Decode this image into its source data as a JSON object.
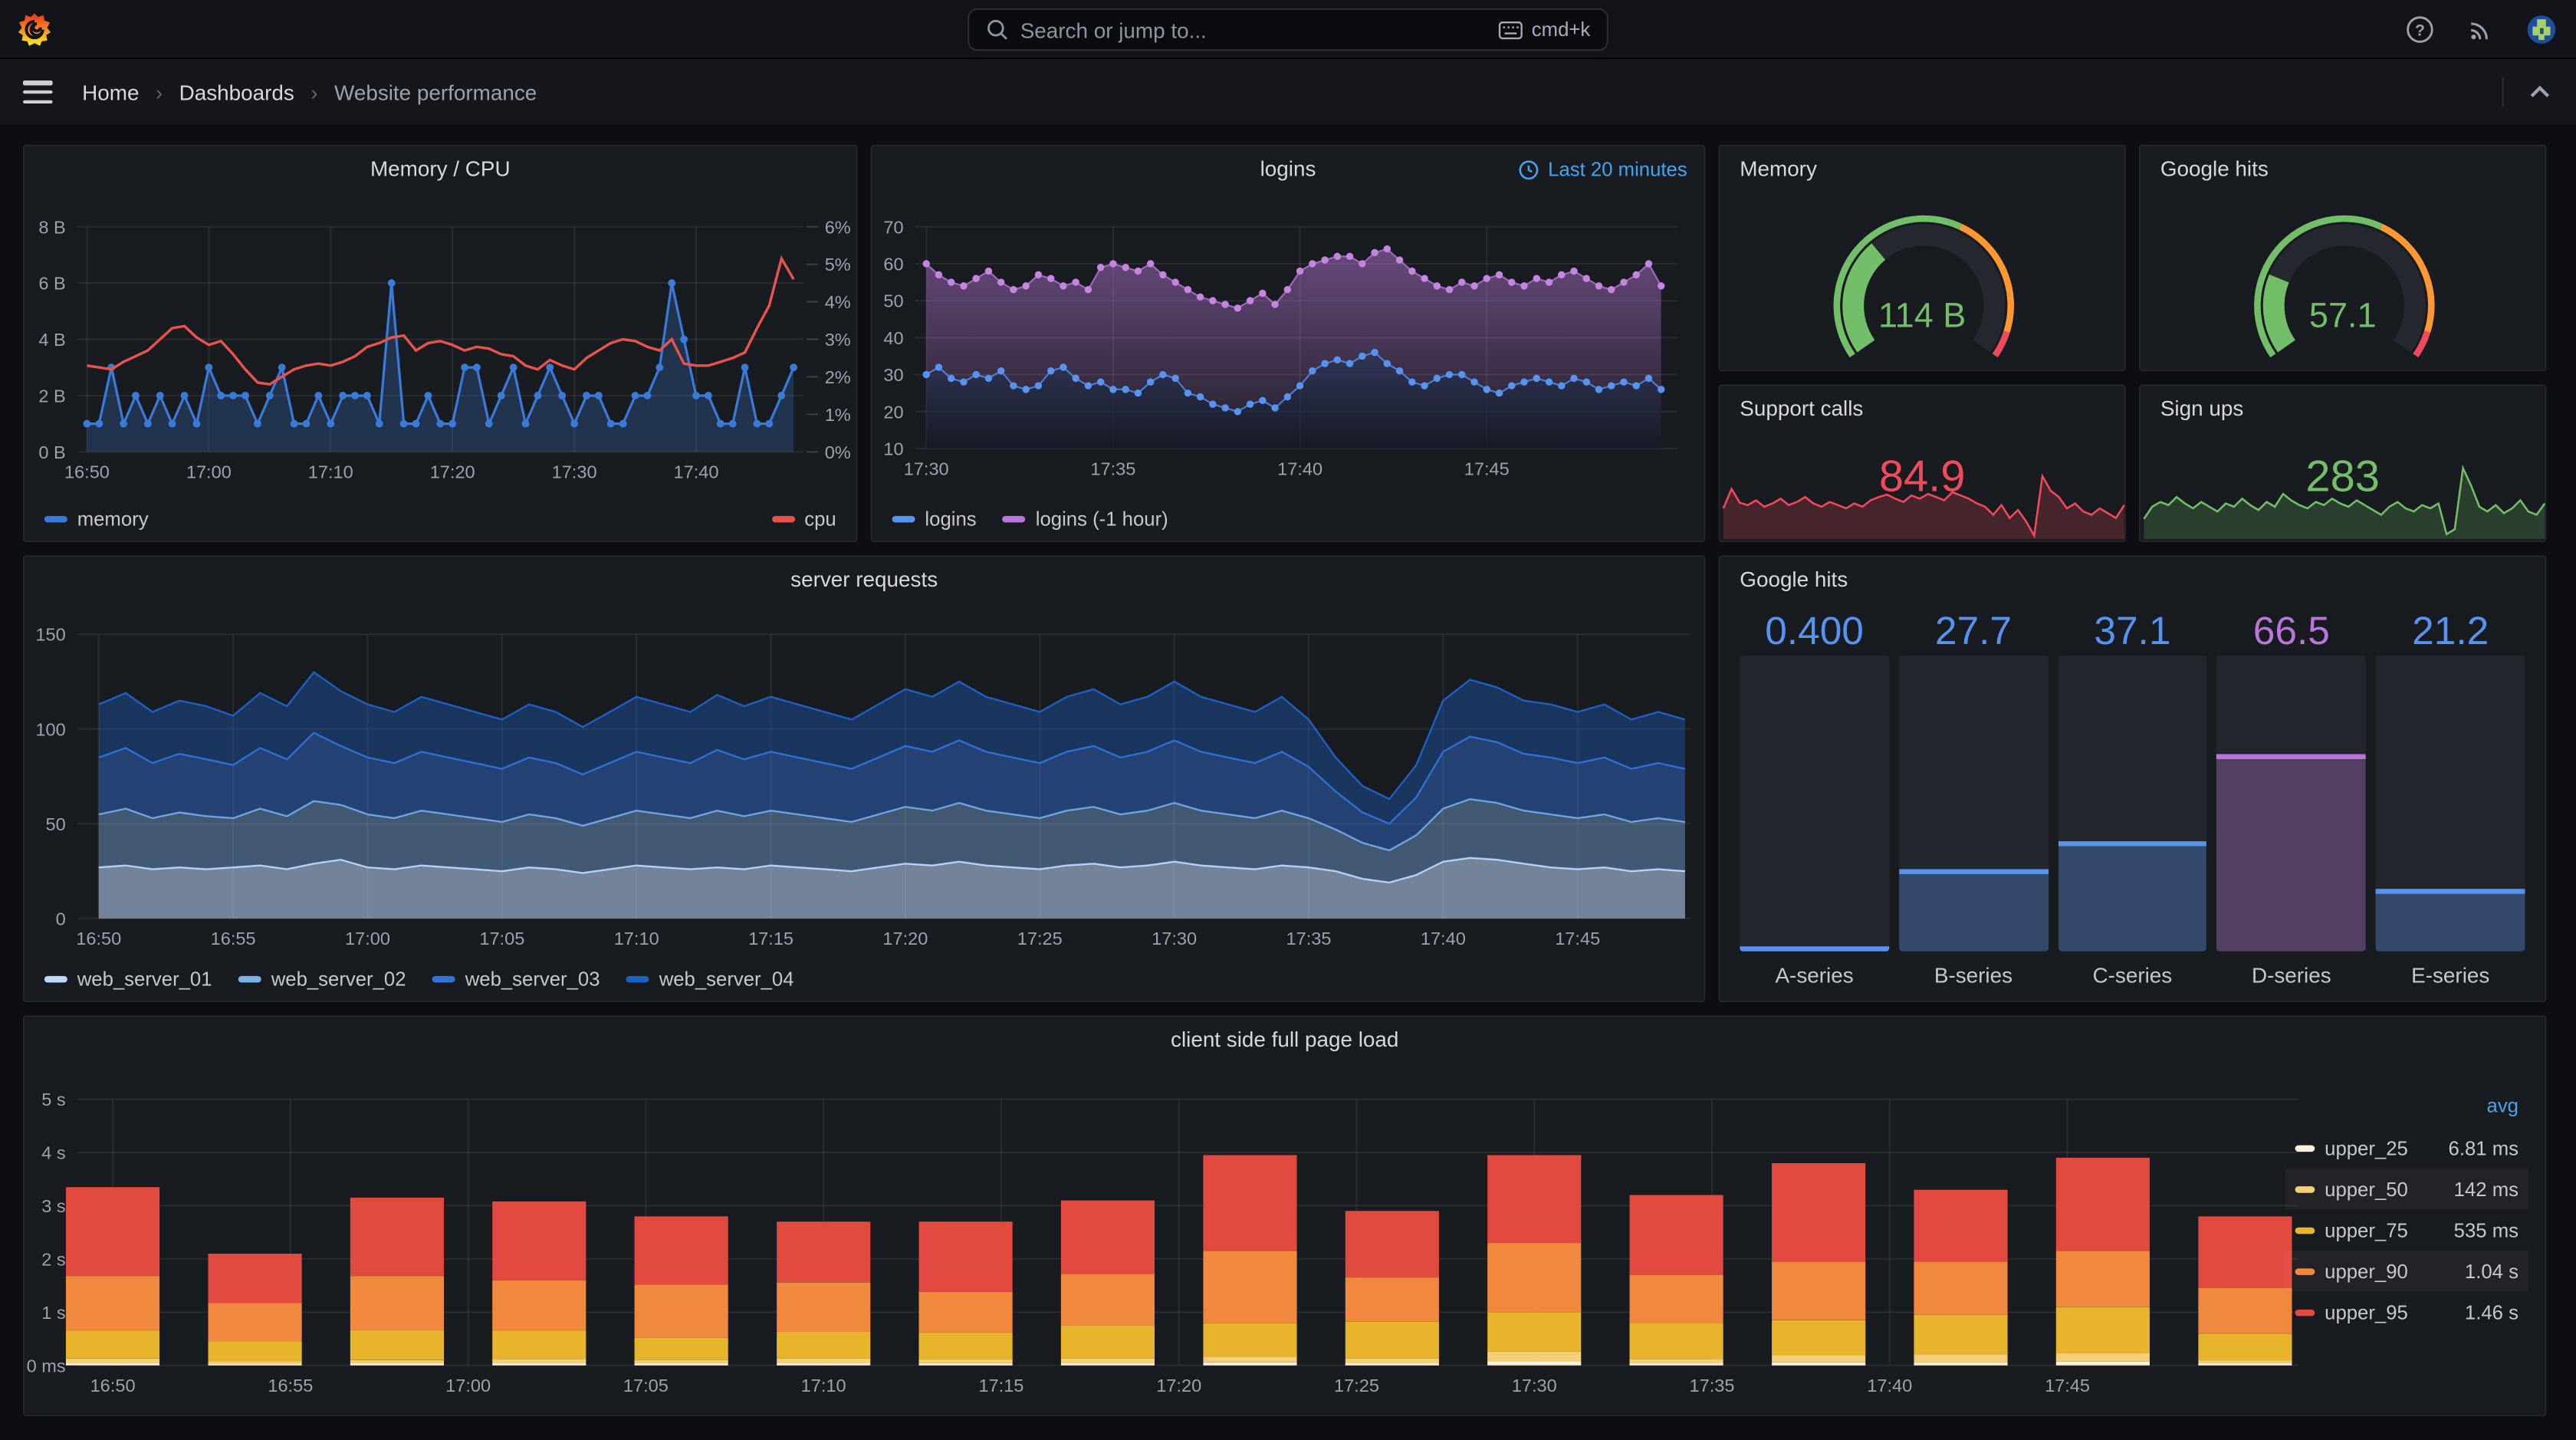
{
  "topnav": {
    "search_placeholder": "Search or jump to...",
    "search_shortcut": "cmd+k"
  },
  "breadcrumb": {
    "items": [
      "Home",
      "Dashboards",
      "Website performance"
    ]
  },
  "colors": {
    "link_blue": "#47A3EC",
    "panel_bg": "#181B1F",
    "page_bg": "#0D0E12",
    "green": "#73BF69",
    "red": "#F2495C",
    "orange": "#FF9830",
    "blue": "#5794F2",
    "purple": "#B877D9"
  },
  "chart_data": [
    {
      "id": "memory_cpu",
      "type": "line",
      "title": "Memory / CPU",
      "x_start": "16:50",
      "x_step_minutes": 1,
      "x_ticks": [
        "16:50",
        "17:00",
        "17:10",
        "17:20",
        "17:30",
        "17:40"
      ],
      "x_tick_minutes": [
        0,
        10,
        20,
        30,
        40,
        50
      ],
      "left_axis": {
        "ticks": [
          "0 B",
          "2 B",
          "4 B",
          "6 B",
          "8 B"
        ],
        "min": 0,
        "max": 8
      },
      "right_axis": {
        "ticks": [
          "0%",
          "1%",
          "2%",
          "3%",
          "4%",
          "5%",
          "6%"
        ],
        "min": 0,
        "max": 6
      },
      "legend": [
        "memory",
        "cpu"
      ],
      "series": [
        {
          "name": "memory",
          "axis": "left",
          "color": "#3A7AD9",
          "values": [
            1,
            1,
            3,
            1,
            2,
            1,
            2,
            1,
            2,
            1,
            3,
            2,
            2,
            2,
            1,
            2,
            3,
            1,
            1,
            2,
            1,
            2,
            2,
            2,
            1,
            6,
            1,
            1,
            2,
            1,
            1,
            3,
            3,
            1,
            2,
            3,
            1,
            2,
            3,
            2,
            1,
            2,
            2,
            1,
            1,
            2,
            2,
            3,
            6,
            4,
            2,
            2,
            1,
            1,
            3,
            1,
            1,
            2,
            3
          ]
        },
        {
          "name": "cpu",
          "axis": "right",
          "color": "#E8534E",
          "values": [
            2.3,
            2.25,
            2.2,
            2.4,
            2.55,
            2.7,
            3.0,
            3.3,
            3.35,
            3.05,
            2.85,
            2.95,
            2.6,
            2.2,
            1.85,
            1.8,
            2.0,
            2.2,
            2.3,
            2.35,
            2.3,
            2.4,
            2.55,
            2.8,
            2.9,
            3.05,
            3.1,
            2.7,
            2.9,
            2.95,
            2.85,
            2.7,
            2.8,
            2.75,
            2.6,
            2.55,
            2.3,
            2.2,
            2.45,
            2.3,
            2.2,
            2.5,
            2.7,
            2.9,
            3.0,
            2.95,
            2.8,
            2.7,
            3.0,
            2.35,
            2.3,
            2.3,
            2.4,
            2.5,
            2.65,
            3.3,
            3.9,
            5.15,
            4.6
          ]
        }
      ]
    },
    {
      "id": "logins",
      "type": "scatter-area",
      "title": "logins",
      "time_range_label": "Last 20 minutes",
      "x_start": "17:30",
      "x_step_seconds": 20,
      "x_ticks": [
        "17:30",
        "17:35",
        "17:40",
        "17:45"
      ],
      "x_tick_minutes": [
        0,
        5,
        10,
        15
      ],
      "ylim": [
        10,
        70
      ],
      "y_ticks": [
        10,
        20,
        30,
        40,
        50,
        60,
        70
      ],
      "series": [
        {
          "name": "logins",
          "color": "#5794F2",
          "values": [
            30,
            32,
            29,
            28,
            30,
            29,
            31,
            27,
            26,
            27,
            31,
            32,
            29,
            27,
            28,
            26,
            26,
            25,
            28,
            30,
            29,
            25,
            24,
            22,
            21,
            20,
            22,
            23,
            21,
            24,
            27,
            31,
            33,
            34,
            33,
            35,
            36,
            33,
            31,
            28,
            27,
            29,
            30,
            30,
            28,
            26,
            25,
            27,
            28,
            29,
            28,
            27,
            29,
            28,
            26,
            27,
            28,
            27,
            29,
            26
          ]
        },
        {
          "name": "logins (-1 hour)",
          "color": "#B877D9",
          "values": [
            60,
            57,
            55,
            54,
            56,
            58,
            55,
            53,
            54,
            57,
            56,
            54,
            55,
            53,
            59,
            60,
            59,
            58,
            60,
            57,
            55,
            53,
            51,
            50,
            49,
            48,
            50,
            52,
            49,
            53,
            58,
            60,
            61,
            62,
            62,
            60,
            63,
            64,
            61,
            58,
            56,
            54,
            53,
            55,
            54,
            56,
            57,
            55,
            54,
            56,
            55,
            57,
            58,
            56,
            54,
            53,
            55,
            57,
            60,
            54
          ]
        }
      ]
    },
    {
      "id": "server_requests",
      "type": "area-stacked",
      "title": "server requests",
      "x_start": "16:50",
      "x_step_minutes": 1,
      "x_ticks": [
        "16:50",
        "16:55",
        "17:00",
        "17:05",
        "17:10",
        "17:15",
        "17:20",
        "17:25",
        "17:30",
        "17:35",
        "17:40",
        "17:45"
      ],
      "x_tick_minutes": [
        0,
        5,
        10,
        15,
        20,
        25,
        30,
        35,
        40,
        45,
        50,
        55
      ],
      "ylim": [
        0,
        150
      ],
      "y_ticks": [
        0,
        50,
        100,
        150
      ],
      "series": [
        {
          "name": "web_server_01",
          "color": "#C0D8FF",
          "values": [
            27,
            28,
            26,
            27,
            26,
            27,
            28,
            26,
            29,
            31,
            27,
            26,
            28,
            27,
            26,
            25,
            27,
            26,
            24,
            26,
            28,
            27,
            26,
            27,
            26,
            28,
            27,
            26,
            25,
            27,
            29,
            28,
            30,
            28,
            27,
            26,
            28,
            29,
            27,
            28,
            30,
            28,
            27,
            26,
            28,
            27,
            25,
            21,
            19,
            23,
            30,
            32,
            31,
            29,
            27,
            26,
            27,
            25,
            26,
            25
          ]
        },
        {
          "name": "web_server_02",
          "color": "#7EB0E8",
          "values": [
            28,
            30,
            27,
            29,
            28,
            26,
            30,
            28,
            33,
            29,
            28,
            27,
            29,
            28,
            27,
            26,
            28,
            27,
            25,
            27,
            29,
            28,
            27,
            30,
            28,
            29,
            28,
            27,
            26,
            28,
            30,
            29,
            31,
            29,
            28,
            27,
            29,
            30,
            28,
            29,
            31,
            29,
            28,
            27,
            29,
            26,
            22,
            19,
            17,
            21,
            28,
            31,
            30,
            28,
            28,
            27,
            28,
            26,
            27,
            26
          ]
        },
        {
          "name": "web_server_03",
          "color": "#3274D9",
          "values": [
            30,
            32,
            29,
            31,
            30,
            28,
            32,
            30,
            36,
            31,
            30,
            29,
            31,
            30,
            29,
            28,
            30,
            29,
            27,
            29,
            31,
            30,
            29,
            32,
            30,
            31,
            30,
            29,
            28,
            30,
            32,
            31,
            33,
            31,
            30,
            29,
            31,
            32,
            30,
            31,
            33,
            31,
            30,
            29,
            31,
            27,
            20,
            16,
            14,
            20,
            30,
            33,
            32,
            30,
            30,
            29,
            30,
            28,
            29,
            28
          ]
        },
        {
          "name": "web_server_04",
          "color": "#1F60C4",
          "values": [
            28,
            29,
            27,
            28,
            28,
            26,
            29,
            28,
            32,
            29,
            28,
            27,
            29,
            28,
            27,
            26,
            28,
            27,
            25,
            27,
            29,
            28,
            27,
            29,
            28,
            29,
            28,
            27,
            26,
            28,
            30,
            29,
            31,
            29,
            28,
            27,
            29,
            30,
            28,
            29,
            31,
            29,
            28,
            27,
            29,
            25,
            18,
            14,
            13,
            17,
            27,
            30,
            29,
            28,
            28,
            27,
            28,
            26,
            27,
            26
          ]
        }
      ]
    },
    {
      "id": "gauge_memory",
      "type": "gauge",
      "title": "Memory",
      "value": "114 B",
      "fraction": 0.34,
      "thresholds": [
        {
          "color": "#73BF69",
          "upto": 0.6
        },
        {
          "color": "#FF9830",
          "upto": 0.93
        },
        {
          "color": "#F2495C",
          "upto": 1.0
        }
      ]
    },
    {
      "id": "gauge_google",
      "type": "gauge",
      "title": "Google hits",
      "value": "57.1",
      "fraction": 0.23,
      "thresholds": [
        {
          "color": "#73BF69",
          "upto": 0.6
        },
        {
          "color": "#FF9830",
          "upto": 0.93
        },
        {
          "color": "#F2495C",
          "upto": 1.0
        }
      ]
    },
    {
      "id": "support_calls",
      "type": "stat-sparkline",
      "title": "Support calls",
      "value": "84.9",
      "color": "#F2495C",
      "spark": [
        0.38,
        0.62,
        0.45,
        0.42,
        0.48,
        0.4,
        0.44,
        0.5,
        0.42,
        0.46,
        0.52,
        0.44,
        0.4,
        0.46,
        0.42,
        0.38,
        0.44,
        0.4,
        0.48,
        0.52,
        0.55,
        0.5,
        0.46,
        0.54,
        0.5,
        0.56,
        0.52,
        0.48,
        0.58,
        0.54,
        0.5,
        0.44,
        0.4,
        0.3,
        0.42,
        0.26,
        0.36,
        0.22,
        0.04,
        0.78,
        0.6,
        0.52,
        0.38,
        0.44,
        0.34,
        0.3,
        0.38,
        0.32,
        0.26,
        0.42
      ]
    },
    {
      "id": "sign_ups",
      "type": "stat-sparkline",
      "title": "Sign ups",
      "value": "283",
      "color": "#73BF69",
      "spark": [
        0.25,
        0.4,
        0.46,
        0.42,
        0.52,
        0.44,
        0.38,
        0.46,
        0.4,
        0.34,
        0.44,
        0.4,
        0.5,
        0.42,
        0.36,
        0.46,
        0.4,
        0.56,
        0.48,
        0.42,
        0.38,
        0.46,
        0.42,
        0.5,
        0.44,
        0.4,
        0.48,
        0.42,
        0.36,
        0.3,
        0.4,
        0.46,
        0.38,
        0.34,
        0.42,
        0.38,
        0.44,
        0.06,
        0.12,
        0.88,
        0.66,
        0.4,
        0.34,
        0.42,
        0.32,
        0.38,
        0.48,
        0.34,
        0.3,
        0.44
      ]
    },
    {
      "id": "google_hits_bars",
      "type": "bar-gauge",
      "title": "Google hits",
      "max": 100,
      "bars": [
        {
          "label": "A-series",
          "value": "0.400",
          "fraction": 0.004,
          "color": "#5794F2"
        },
        {
          "label": "B-series",
          "value": "27.7",
          "fraction": 0.277,
          "color": "#5794F2"
        },
        {
          "label": "C-series",
          "value": "37.1",
          "fraction": 0.371,
          "color": "#5794F2"
        },
        {
          "label": "D-series",
          "value": "66.5",
          "fraction": 0.665,
          "color": "#B877D9"
        },
        {
          "label": "E-series",
          "value": "21.2",
          "fraction": 0.212,
          "color": "#5794F2"
        }
      ]
    },
    {
      "id": "page_load",
      "type": "bar-stacked",
      "title": "client side full page load",
      "x_start": "16:50",
      "bar_interval_minutes": 4,
      "x_ticks": [
        "16:50",
        "16:55",
        "17:00",
        "17:05",
        "17:10",
        "17:15",
        "17:20",
        "17:25",
        "17:30",
        "17:35",
        "17:40",
        "17:45"
      ],
      "x_tick_minutes": [
        0,
        5,
        10,
        15,
        20,
        25,
        30,
        35,
        40,
        45,
        50,
        55
      ],
      "ylim": [
        0,
        5
      ],
      "y_tick_labels": [
        "0 ms",
        "1 s",
        "2 s",
        "3 s",
        "4 s",
        "5 s"
      ],
      "series_names": [
        "upper_25",
        "upper_50",
        "upper_75",
        "upper_90",
        "upper_95"
      ],
      "series_colors": [
        "#FFF0DC",
        "#F5CF75",
        "#E8B42C",
        "#F0883E",
        "#E2493F"
      ],
      "bars_cumulative_seconds": [
        [
          0.05,
          0.13,
          0.65,
          1.68,
          3.35
        ],
        [
          0.03,
          0.08,
          0.45,
          1.17,
          2.1
        ],
        [
          0.04,
          0.1,
          0.66,
          1.68,
          3.15
        ],
        [
          0.05,
          0.12,
          0.65,
          1.6,
          3.08
        ],
        [
          0.04,
          0.1,
          0.52,
          1.52,
          2.8
        ],
        [
          0.05,
          0.13,
          0.63,
          1.56,
          2.7
        ],
        [
          0.05,
          0.11,
          0.62,
          1.38,
          2.7
        ],
        [
          0.05,
          0.13,
          0.75,
          1.72,
          3.1
        ],
        [
          0.06,
          0.16,
          0.8,
          2.15,
          3.95
        ],
        [
          0.05,
          0.13,
          0.82,
          1.65,
          2.9
        ],
        [
          0.08,
          0.26,
          1.0,
          2.3,
          3.95
        ],
        [
          0.05,
          0.12,
          0.8,
          1.7,
          3.2
        ],
        [
          0.06,
          0.19,
          0.85,
          1.95,
          3.8
        ],
        [
          0.06,
          0.21,
          0.95,
          1.95,
          3.3
        ],
        [
          0.07,
          0.23,
          1.1,
          2.15,
          3.9
        ],
        [
          0.04,
          0.09,
          0.6,
          1.45,
          2.8
        ]
      ],
      "legend": {
        "header": "avg",
        "rows": [
          {
            "name": "upper_25",
            "avg": "6.81 ms"
          },
          {
            "name": "upper_50",
            "avg": "142 ms"
          },
          {
            "name": "upper_75",
            "avg": "535 ms"
          },
          {
            "name": "upper_90",
            "avg": "1.04 s"
          },
          {
            "name": "upper_95",
            "avg": "1.46 s"
          }
        ]
      }
    }
  ]
}
